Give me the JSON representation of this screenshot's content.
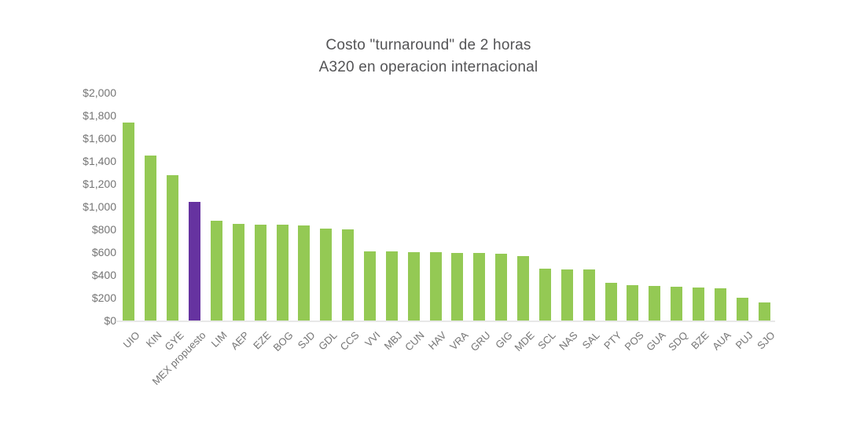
{
  "colors": {
    "background": "#ffffff",
    "title_text": "#545456",
    "axis_label_text": "#757575",
    "axis_line": "#e8e8e8",
    "bar_green": "#94c954",
    "bar_purple": "#6633a0"
  },
  "chart_data": {
    "type": "bar",
    "title": "Costo \"turnaround\" de 2 horas A320 en operacion internacional",
    "title_line1": "Costo \"turnaround\" de 2 horas",
    "title_line2": "A320 en operacion internacional",
    "xlabel": "",
    "ylabel": "",
    "ylim": [
      0,
      2000
    ],
    "y_tick_step": 200,
    "y_tick_labels": [
      "$0",
      "$200",
      "$400",
      "$600",
      "$800",
      "$1,000",
      "$1,200",
      "$1,400",
      "$1,600",
      "$1,800",
      "$2,000"
    ],
    "grid": "off",
    "legend": "none",
    "categories": [
      "UIO",
      "KIN",
      "GYE",
      "MEX propuesto",
      "LIM",
      "AEP",
      "EZE",
      "BOG",
      "SJD",
      "GDL",
      "CCS",
      "VVI",
      "MBJ",
      "CUN",
      "HAV",
      "VRA",
      "GRU",
      "GIG",
      "MDE",
      "SCL",
      "NAS",
      "SAL",
      "PTY",
      "POS",
      "GUA",
      "SDQ",
      "BZE",
      "AUA",
      "PUJ",
      "SJO"
    ],
    "values": [
      1740,
      1450,
      1275,
      1040,
      875,
      845,
      843,
      840,
      833,
      805,
      797,
      608,
      606,
      602,
      598,
      596,
      590,
      585,
      566,
      458,
      450,
      446,
      328,
      310,
      306,
      294,
      290,
      282,
      198,
      162
    ],
    "highlight_category": "MEX propuesto",
    "highlight_index": 3,
    "bar_color": "#94c954",
    "highlight_color": "#6633a0"
  }
}
